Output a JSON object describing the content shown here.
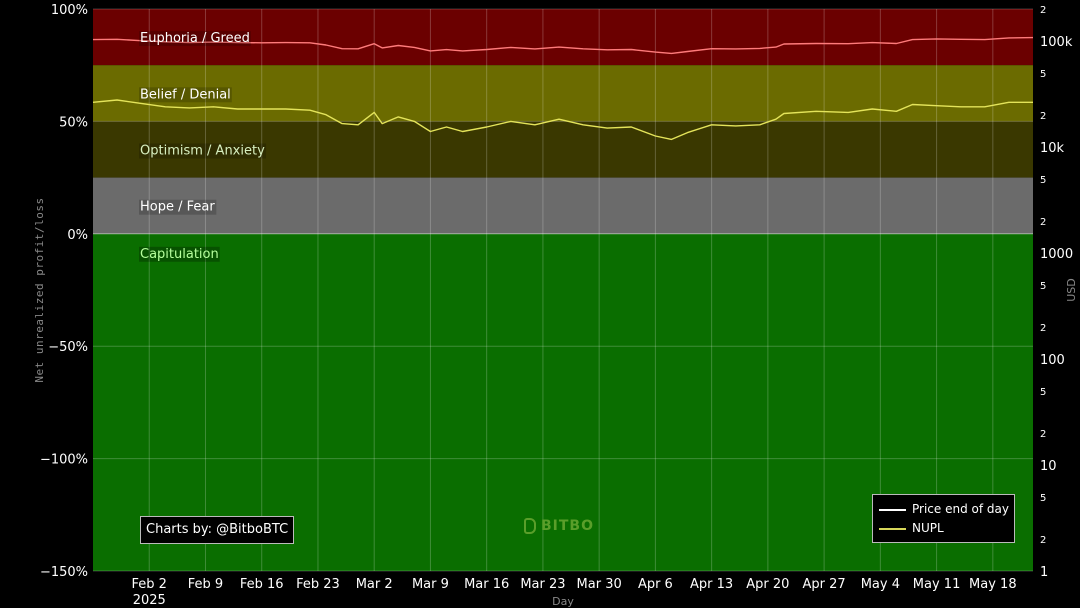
{
  "chart_data": {
    "type": "line",
    "xlabel": "Day",
    "ylabel": "Net unrealized profit/loss",
    "y2label": "USD",
    "ylim": [
      -150,
      100
    ],
    "y_ticks": [
      "100%",
      "50%",
      "0%",
      "−50%",
      "−100%",
      "−150%"
    ],
    "y_tick_values": [
      100,
      50,
      0,
      -50,
      -100,
      -150
    ],
    "y2_scale": "log",
    "y2lim": [
      1,
      200000
    ],
    "y2_major_ticks": [
      {
        "label": "100k",
        "value": 100000
      },
      {
        "label": "10k",
        "value": 10000
      },
      {
        "label": "1000",
        "value": 1000
      },
      {
        "label": "100",
        "value": 100
      },
      {
        "label": "10",
        "value": 10
      },
      {
        "label": "1",
        "value": 1
      }
    ],
    "y2_minor_ticks": [
      {
        "label": "2",
        "value": 200000
      },
      {
        "label": "5",
        "value": 50000
      },
      {
        "label": "2",
        "value": 20000
      },
      {
        "label": "5",
        "value": 5000
      },
      {
        "label": "2",
        "value": 2000
      },
      {
        "label": "5",
        "value": 500
      },
      {
        "label": "2",
        "value": 200
      },
      {
        "label": "5",
        "value": 50
      },
      {
        "label": "2",
        "value": 20
      },
      {
        "label": "5",
        "value": 5
      },
      {
        "label": "2",
        "value": 2
      }
    ],
    "x_ticks": [
      {
        "label": "Feb 2",
        "date": "2025-02-02"
      },
      {
        "label": "Feb 9",
        "date": "2025-02-09"
      },
      {
        "label": "Feb 16",
        "date": "2025-02-16"
      },
      {
        "label": "Feb 23",
        "date": "2025-02-23"
      },
      {
        "label": "Mar 2",
        "date": "2025-03-02"
      },
      {
        "label": "Mar 9",
        "date": "2025-03-09"
      },
      {
        "label": "Mar 16",
        "date": "2025-03-16"
      },
      {
        "label": "Mar 23",
        "date": "2025-03-23"
      },
      {
        "label": "Mar 30",
        "date": "2025-03-30"
      },
      {
        "label": "Apr 6",
        "date": "2025-04-06"
      },
      {
        "label": "Apr 13",
        "date": "2025-04-13"
      },
      {
        "label": "Apr 20",
        "date": "2025-04-20"
      },
      {
        "label": "Apr 27",
        "date": "2025-04-27"
      },
      {
        "label": "May 4",
        "date": "2025-05-04"
      },
      {
        "label": "May 11",
        "date": "2025-05-11"
      },
      {
        "label": "May 18",
        "date": "2025-05-18"
      }
    ],
    "x_year_label": "2025",
    "xlim": [
      "2025-01-26",
      "2025-05-23"
    ],
    "zones": [
      {
        "label": "Euphoria / Greed",
        "from": 75,
        "to": 100,
        "color": "#6b0000",
        "label_color": "#ffffff"
      },
      {
        "label": "Belief / Denial",
        "from": 50,
        "to": 75,
        "color": "#6b6b00",
        "label_color": "#ffffff"
      },
      {
        "label": "Optimism / Anxiety",
        "from": 25,
        "to": 50,
        "color": "#3a3800",
        "label_color": "#d8f0c0"
      },
      {
        "label": "Hope / Fear",
        "from": 0,
        "to": 25,
        "color": "#6b6b6b",
        "label_color": "#ffffff"
      },
      {
        "label": "Capitulation",
        "from": -150,
        "to": 0,
        "color": "#0a6e00",
        "label_color": "#b6ff9c"
      }
    ],
    "series": [
      {
        "name": "Price end of day",
        "axis": "right",
        "color": "#ff7b7b",
        "legend_color": "#ffffff",
        "points": [
          [
            "2025-01-26",
            103000
          ],
          [
            "2025-01-29",
            103500
          ],
          [
            "2025-02-01",
            100500
          ],
          [
            "2025-02-04",
            98000
          ],
          [
            "2025-02-07",
            96500
          ],
          [
            "2025-02-10",
            97500
          ],
          [
            "2025-02-13",
            96500
          ],
          [
            "2025-02-16",
            96000
          ],
          [
            "2025-02-19",
            96500
          ],
          [
            "2025-02-22",
            96000
          ],
          [
            "2025-02-24",
            91500
          ],
          [
            "2025-02-26",
            84500
          ],
          [
            "2025-02-28",
            84300
          ],
          [
            "2025-03-02",
            94200
          ],
          [
            "2025-03-03",
            86000
          ],
          [
            "2025-03-05",
            90500
          ],
          [
            "2025-03-07",
            86800
          ],
          [
            "2025-03-09",
            80500
          ],
          [
            "2025-03-11",
            82800
          ],
          [
            "2025-03-13",
            80500
          ],
          [
            "2025-03-16",
            83000
          ],
          [
            "2025-03-19",
            86800
          ],
          [
            "2025-03-22",
            84000
          ],
          [
            "2025-03-25",
            87500
          ],
          [
            "2025-03-28",
            84300
          ],
          [
            "2025-03-31",
            82500
          ],
          [
            "2025-04-03",
            83000
          ],
          [
            "2025-04-06",
            78500
          ],
          [
            "2025-04-08",
            76300
          ],
          [
            "2025-04-10",
            79500
          ],
          [
            "2025-04-13",
            84500
          ],
          [
            "2025-04-16",
            84000
          ],
          [
            "2025-04-19",
            85000
          ],
          [
            "2025-04-21",
            87500
          ],
          [
            "2025-04-22",
            93500
          ],
          [
            "2025-04-26",
            94500
          ],
          [
            "2025-04-30",
            94200
          ],
          [
            "2025-05-03",
            96500
          ],
          [
            "2025-05-06",
            94500
          ],
          [
            "2025-05-08",
            103000
          ],
          [
            "2025-05-11",
            104500
          ],
          [
            "2025-05-14",
            103500
          ],
          [
            "2025-05-17",
            103000
          ],
          [
            "2025-05-20",
            106800
          ],
          [
            "2025-05-23",
            107500
          ]
        ]
      },
      {
        "name": "NUPL",
        "axis": "left",
        "color": "#e4e45a",
        "legend_color": "#d8d85a",
        "points": [
          [
            "2025-01-26",
            58.5
          ],
          [
            "2025-01-29",
            59.5
          ],
          [
            "2025-02-01",
            58
          ],
          [
            "2025-02-04",
            56.5
          ],
          [
            "2025-02-07",
            56
          ],
          [
            "2025-02-10",
            56.5
          ],
          [
            "2025-02-13",
            55.5
          ],
          [
            "2025-02-16",
            55.5
          ],
          [
            "2025-02-19",
            55.5
          ],
          [
            "2025-02-22",
            55
          ],
          [
            "2025-02-24",
            53
          ],
          [
            "2025-02-26",
            49
          ],
          [
            "2025-02-28",
            48.5
          ],
          [
            "2025-03-02",
            54
          ],
          [
            "2025-03-03",
            49
          ],
          [
            "2025-03-05",
            52
          ],
          [
            "2025-03-07",
            50
          ],
          [
            "2025-03-09",
            45.5
          ],
          [
            "2025-03-11",
            47.5
          ],
          [
            "2025-03-13",
            45.5
          ],
          [
            "2025-03-16",
            47.5
          ],
          [
            "2025-03-19",
            50
          ],
          [
            "2025-03-22",
            48.5
          ],
          [
            "2025-03-25",
            51
          ],
          [
            "2025-03-28",
            48.5
          ],
          [
            "2025-03-31",
            47
          ],
          [
            "2025-04-03",
            47.5
          ],
          [
            "2025-04-06",
            43.5
          ],
          [
            "2025-04-08",
            42
          ],
          [
            "2025-04-10",
            45
          ],
          [
            "2025-04-13",
            48.5
          ],
          [
            "2025-04-16",
            48
          ],
          [
            "2025-04-19",
            48.5
          ],
          [
            "2025-04-21",
            51
          ],
          [
            "2025-04-22",
            53.5
          ],
          [
            "2025-04-26",
            54.5
          ],
          [
            "2025-04-30",
            54
          ],
          [
            "2025-05-03",
            55.5
          ],
          [
            "2025-05-06",
            54.5
          ],
          [
            "2025-05-08",
            57.5
          ],
          [
            "2025-05-11",
            57
          ],
          [
            "2025-05-14",
            56.5
          ],
          [
            "2025-05-17",
            56.5
          ],
          [
            "2025-05-20",
            58.5
          ],
          [
            "2025-05-23",
            58.5
          ]
        ]
      }
    ],
    "legend_position": "bottom-right",
    "grid": true,
    "credit": "Charts by: @BitboBTC",
    "watermark": "BITBO"
  }
}
